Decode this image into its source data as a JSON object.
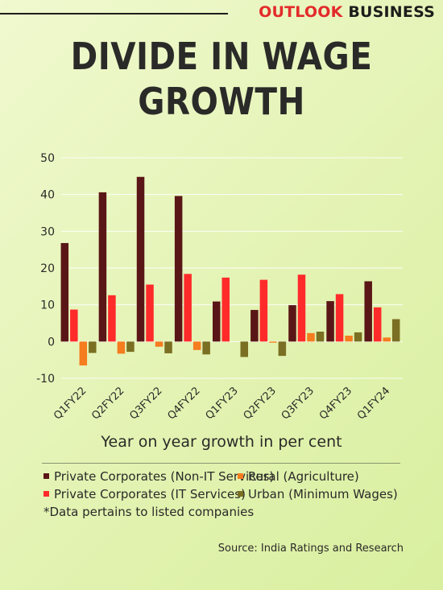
{
  "brand": {
    "part1": "OUTLOOK",
    "part2": "BUSINESS"
  },
  "title_line1": "DIVIDE IN WAGE",
  "title_line2": "GROWTH",
  "note": "*Data pertains to listed companies",
  "source": "Source: India Ratings and Research",
  "chart_data": {
    "type": "bar",
    "title": "DIVIDE IN WAGE GROWTH",
    "xlabel": "Year on year growth in per cent",
    "ylabel": "",
    "ylim": [
      -10,
      50
    ],
    "yticks": [
      50,
      40,
      30,
      20,
      10,
      0,
      -10
    ],
    "grid": true,
    "legend_position": "bottom",
    "categories": [
      "Q1FY22",
      "Q2FY22",
      "Q3FY22",
      "Q4FY22",
      "Q1FY23",
      "Q2FY23",
      "Q3FY23",
      "Q4FY23",
      "Q1FY24"
    ],
    "series": [
      {
        "name": "Private Corporates (Non-IT Services)",
        "color": "#5a1616",
        "values": [
          26.8,
          40.6,
          44.8,
          39.6,
          10.9,
          8.6,
          9.9,
          11.0,
          16.4
        ]
      },
      {
        "name": "Private Corporates (IT Services)",
        "color": "#ff2b2b",
        "values": [
          8.7,
          12.6,
          15.5,
          18.4,
          17.4,
          16.8,
          18.2,
          12.9,
          9.3
        ]
      },
      {
        "name": "Rural (Agriculture)",
        "color": "#f57c1f",
        "values": [
          -6.5,
          -3.3,
          -1.4,
          -2.3,
          0.0,
          -0.3,
          2.3,
          1.6,
          1.1
        ]
      },
      {
        "name": "Urban (Minimum Wages)",
        "color": "#7a6f22",
        "values": [
          -3.1,
          -2.8,
          -3.2,
          -3.5,
          -4.2,
          -3.9,
          2.7,
          2.5,
          6.1
        ]
      }
    ],
    "legend_order": [
      "Private Corporates (Non-IT Services)",
      "Rural (Agriculture)",
      "Private Corporates (IT Services)",
      "Urban (Minimum Wages)"
    ]
  }
}
